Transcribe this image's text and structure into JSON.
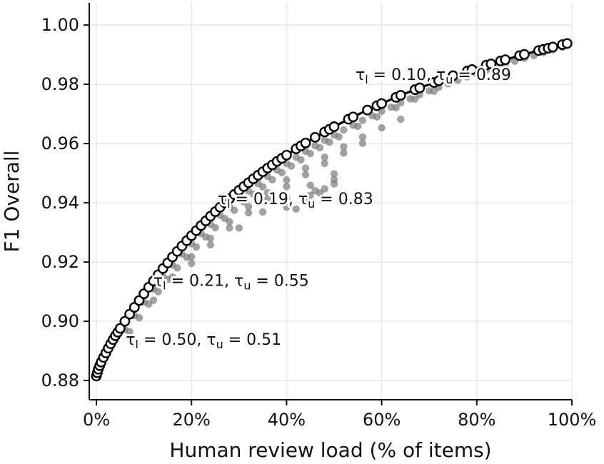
{
  "chart_data": {
    "type": "scatter",
    "title": "",
    "xlabel": "Human review load (% of items)",
    "ylabel": "F1 Overall",
    "xlim": [
      -0.015,
      1.0
    ],
    "ylim": [
      0.8735,
      1.0075
    ],
    "x_ticks": [
      {
        "value": 0.0,
        "label": "0%"
      },
      {
        "value": 0.2,
        "label": "20%"
      },
      {
        "value": 0.4,
        "label": "40%"
      },
      {
        "value": 0.6,
        "label": "60%"
      },
      {
        "value": 0.8,
        "label": "80%"
      },
      {
        "value": 1.0,
        "label": "100%"
      }
    ],
    "y_ticks": [
      {
        "value": 0.88,
        "label": "0.88"
      },
      {
        "value": 0.9,
        "label": "0.90"
      },
      {
        "value": 0.92,
        "label": "0.92"
      },
      {
        "value": 0.94,
        "label": "0.94"
      },
      {
        "value": 0.96,
        "label": "0.96"
      },
      {
        "value": 0.98,
        "label": "0.98"
      },
      {
        "value": 1.0,
        "label": "1.00"
      }
    ],
    "grid": true,
    "legend": "none",
    "colors": {
      "frontier_line": "#000000",
      "frontier_marker_fill": "#ffffff",
      "frontier_marker_edge": "#000000",
      "dominated_points": "#7a7a7a"
    },
    "frontier": {
      "x": [
        0.0,
        0.002,
        0.004,
        0.007,
        0.01,
        0.015,
        0.02,
        0.025,
        0.03,
        0.035,
        0.04,
        0.045,
        0.05,
        0.06,
        0.07,
        0.08,
        0.09,
        0.1,
        0.11,
        0.12,
        0.13,
        0.14,
        0.15,
        0.16,
        0.17,
        0.18,
        0.19,
        0.2,
        0.21,
        0.22,
        0.23,
        0.24,
        0.25,
        0.26,
        0.27,
        0.28,
        0.29,
        0.3,
        0.31,
        0.32,
        0.33,
        0.34,
        0.35,
        0.36,
        0.37,
        0.38,
        0.39,
        0.4,
        0.42,
        0.43,
        0.44,
        0.46,
        0.48,
        0.49,
        0.5,
        0.53,
        0.54,
        0.57,
        0.59,
        0.6,
        0.63,
        0.64,
        0.67,
        0.68,
        0.71,
        0.72,
        0.75,
        0.78,
        0.79,
        0.82,
        0.83,
        0.85,
        0.86,
        0.89,
        0.9,
        0.93,
        0.94,
        0.95,
        0.96,
        0.98,
        0.99
      ],
      "y": [
        0.8815,
        0.8826,
        0.8838,
        0.885,
        0.8862,
        0.8878,
        0.8893,
        0.8909,
        0.8924,
        0.8938,
        0.8951,
        0.8963,
        0.8976,
        0.9,
        0.9024,
        0.9047,
        0.907,
        0.9093,
        0.9115,
        0.9136,
        0.9157,
        0.9178,
        0.9197,
        0.9217,
        0.9236,
        0.9254,
        0.9272,
        0.9289,
        0.9306,
        0.9323,
        0.9339,
        0.9355,
        0.937,
        0.9385,
        0.94,
        0.9414,
        0.9428,
        0.9442,
        0.9455,
        0.9468,
        0.9481,
        0.9493,
        0.9505,
        0.9517,
        0.9528,
        0.954,
        0.955,
        0.9561,
        0.9582,
        0.9592,
        0.9602,
        0.9621,
        0.9639,
        0.9648,
        0.9657,
        0.9682,
        0.969,
        0.9713,
        0.9728,
        0.9735,
        0.9756,
        0.9763,
        0.9782,
        0.9788,
        0.9806,
        0.9812,
        0.9829,
        0.9845,
        0.985,
        0.9865,
        0.9869,
        0.9879,
        0.9883,
        0.9897,
        0.9901,
        0.9914,
        0.9918,
        0.9922,
        0.9926,
        0.9934,
        0.9938
      ]
    },
    "dominated_points": {
      "x": [
        0.04,
        0.06,
        0.08,
        0.1,
        0.12,
        0.14,
        0.16,
        0.18,
        0.2,
        0.22,
        0.24,
        0.26,
        0.28,
        0.3,
        0.32,
        0.34,
        0.36,
        0.38,
        0.4,
        0.42,
        0.44,
        0.46,
        0.48,
        0.5,
        0.52,
        0.54,
        0.56,
        0.58,
        0.6,
        0.62,
        0.64,
        0.66,
        0.68,
        0.7,
        0.72,
        0.74,
        0.76,
        0.78,
        0.8,
        0.82,
        0.84,
        0.86,
        0.88,
        0.9,
        0.92,
        0.94,
        0.96,
        0.98,
        0.07,
        0.09,
        0.11,
        0.13,
        0.15,
        0.17,
        0.19,
        0.21,
        0.23,
        0.25,
        0.27,
        0.29,
        0.31,
        0.33,
        0.35,
        0.37,
        0.39,
        0.41,
        0.43,
        0.45,
        0.47,
        0.49,
        0.51,
        0.55,
        0.59,
        0.63,
        0.67,
        0.71,
        0.12,
        0.16,
        0.2,
        0.24,
        0.28,
        0.32,
        0.36,
        0.4,
        0.44,
        0.48,
        0.52,
        0.56,
        0.6,
        0.64,
        0.2,
        0.24,
        0.28,
        0.32,
        0.36,
        0.4,
        0.44,
        0.48,
        0.52,
        0.56,
        0.3,
        0.35,
        0.4,
        0.45,
        0.5,
        0.5,
        0.45,
        0.4,
        0.46,
        0.5,
        0.44,
        0.48,
        0.42,
        0.47
      ],
      "y": [
        0.8948,
        0.8972,
        0.9019,
        0.9065,
        0.9109,
        0.915,
        0.919,
        0.9227,
        0.9262,
        0.9296,
        0.9328,
        0.9358,
        0.9387,
        0.9414,
        0.944,
        0.9465,
        0.9489,
        0.9511,
        0.9533,
        0.9554,
        0.9574,
        0.9593,
        0.9611,
        0.9629,
        0.9646,
        0.9662,
        0.9678,
        0.9694,
        0.9709,
        0.9723,
        0.9738,
        0.9751,
        0.9765,
        0.9778,
        0.979,
        0.9802,
        0.9814,
        0.9825,
        0.9836,
        0.9847,
        0.9858,
        0.9868,
        0.9878,
        0.9888,
        0.9897,
        0.9907,
        0.9916,
        0.9925,
        0.8965,
        0.9012,
        0.9058,
        0.91,
        0.9141,
        0.918,
        0.9216,
        0.9251,
        0.9285,
        0.9316,
        0.9347,
        0.9375,
        0.9403,
        0.9429,
        0.9454,
        0.9478,
        0.9502,
        0.9524,
        0.9545,
        0.9566,
        0.9586,
        0.9605,
        0.9623,
        0.9658,
        0.969,
        0.9721,
        0.975,
        0.9777,
        0.9071,
        0.9149,
        0.9218,
        0.928,
        0.9336,
        0.9387,
        0.9434,
        0.9477,
        0.9517,
        0.9554,
        0.9589,
        0.9622,
        0.9653,
        0.9682,
        0.9195,
        0.9258,
        0.9315,
        0.9366,
        0.9412,
        0.9455,
        0.9495,
        0.9533,
        0.9568,
        0.9601,
        0.9315,
        0.9369,
        0.9414,
        0.9459,
        0.9498,
        0.9464,
        0.9425,
        0.9385,
        0.9441,
        0.9478,
        0.9403,
        0.9447,
        0.9379,
        0.9433
      ]
    },
    "annotations": [
      {
        "text_before": "τ",
        "sub1": "l",
        "mid": " = 0.10,  τ",
        "sub2": "u",
        "after": " = 0.89",
        "x": 0.545,
        "y": 0.9815
      },
      {
        "text_before": "τ",
        "sub1": "l",
        "mid": " = 0.19,  τ",
        "sub2": "u",
        "after": " = 0.83",
        "x": 0.255,
        "y": 0.9395
      },
      {
        "text_before": "τ",
        "sub1": "l",
        "mid": " = 0.21,  τ",
        "sub2": "u",
        "after": " = 0.55",
        "x": 0.12,
        "y": 0.912
      },
      {
        "text_before": "τ",
        "sub1": "l",
        "mid": " = 0.50,  τ",
        "sub2": "u",
        "after": " = 0.51",
        "x": 0.062,
        "y": 0.892
      }
    ]
  }
}
